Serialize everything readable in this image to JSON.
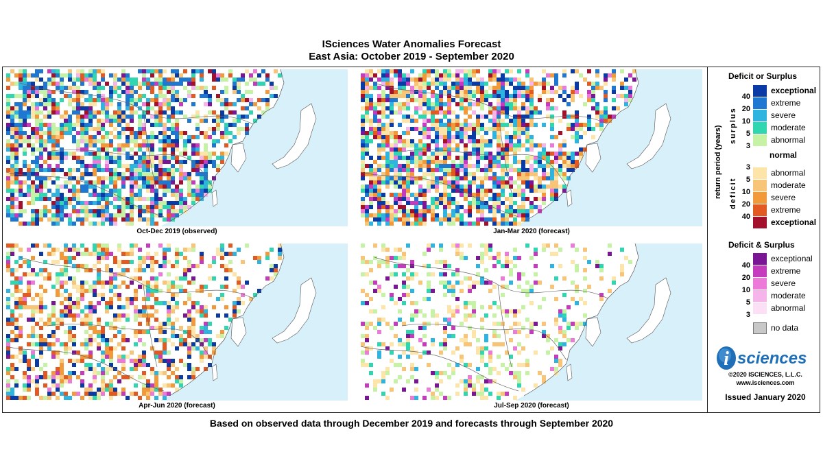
{
  "title": "ISciences Water Anomalies Forecast",
  "subtitle": "East Asia: October 2019 - September 2020",
  "footer": "Based on observed data through December 2019 and forecasts through September 2020",
  "maps": [
    {
      "caption": "Oct-Dec 2019 (observed)",
      "palette": "wet"
    },
    {
      "caption": "Jan-Mar 2020 (forecast)",
      "palette": "mixed"
    },
    {
      "caption": "Apr-Jun 2020 (forecast)",
      "palette": "dry"
    },
    {
      "caption": "Jul-Sep 2020 (forecast)",
      "palette": "sparse"
    }
  ],
  "legend": {
    "title1": "Deficit or Surplus",
    "axis_label": "return period (years)",
    "surplus_label": "surplus",
    "deficit_label": "deficit",
    "surplus_numbers": [
      "40",
      "20",
      "10",
      "5",
      "3"
    ],
    "surplus_items": [
      {
        "label": "exceptional",
        "color": "#0a3aa6",
        "bold": true
      },
      {
        "label": "extreme",
        "color": "#1e78d2",
        "bold": false
      },
      {
        "label": "severe",
        "color": "#2fb3df",
        "bold": false
      },
      {
        "label": "moderate",
        "color": "#2fd6b0",
        "bold": false
      },
      {
        "label": "abnormal",
        "color": "#c6f2a6",
        "bold": false
      }
    ],
    "normal_label": "normal",
    "deficit_numbers": [
      "3",
      "5",
      "10",
      "20",
      "40"
    ],
    "deficit_items": [
      {
        "label": "abnormal",
        "color": "#fde4a8",
        "bold": false
      },
      {
        "label": "moderate",
        "color": "#f8c477",
        "bold": false
      },
      {
        "label": "severe",
        "color": "#f29a3a",
        "bold": false
      },
      {
        "label": "extreme",
        "color": "#e25a22",
        "bold": false
      },
      {
        "label": "exceptional",
        "color": "#a3102b",
        "bold": true
      }
    ],
    "title2": "Deficit & Surplus",
    "both_numbers": [
      "40",
      "20",
      "10",
      "5",
      "3"
    ],
    "both_items": [
      {
        "label": "exceptional",
        "color": "#7a1596"
      },
      {
        "label": "extreme",
        "color": "#c43bbd"
      },
      {
        "label": "severe",
        "color": "#ec7ad8"
      },
      {
        "label": "moderate",
        "color": "#f6b5ea"
      },
      {
        "label": "abnormal",
        "color": "#fbe0f5"
      }
    ],
    "nodata_label": "no data",
    "nodata_color": "#c8c8c8"
  },
  "logo": {
    "letter": "i",
    "text": "sciences"
  },
  "copyright": "©2020 ISCIENCES, L.L.C.",
  "website": "www.isciences.com",
  "issued": "Issued January 2020"
}
